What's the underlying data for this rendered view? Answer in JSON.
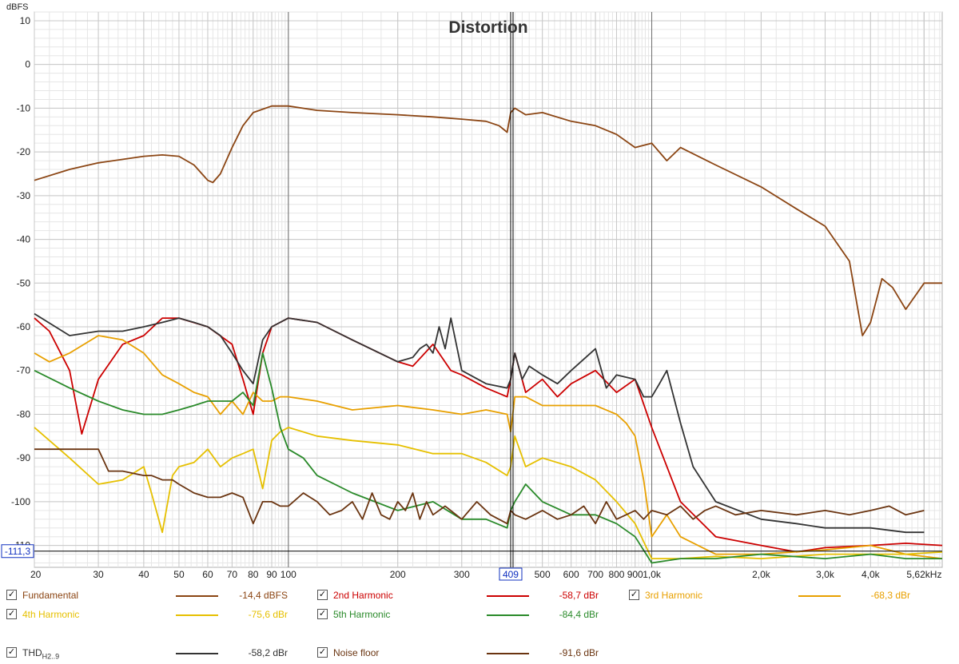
{
  "chart_data": {
    "type": "line",
    "title": "Distortion",
    "ylabel": "dBFS",
    "xscale": "log",
    "xlim": [
      20,
      6300
    ],
    "ylim": [
      -115,
      12
    ],
    "x_ticks": [
      "20",
      "30",
      "40",
      "50",
      "60",
      "70",
      "80",
      "90",
      "100",
      "200",
      "300",
      "409",
      "500",
      "600",
      "700",
      "800",
      "900",
      "1,0k",
      "2,0k",
      "3,0k",
      "4,0k",
      "5,62kHz"
    ],
    "x_tick_values": [
      20,
      30,
      40,
      50,
      60,
      70,
      80,
      90,
      100,
      200,
      300,
      409,
      500,
      600,
      700,
      800,
      900,
      1000,
      2000,
      3000,
      4000,
      5620
    ],
    "y_ticks": [
      "10",
      "0",
      "-10",
      "-20",
      "-30",
      "-40",
      "-50",
      "-60",
      "-70",
      "-80",
      "-90",
      "-100",
      "-110"
    ],
    "y_tick_values": [
      10,
      0,
      -10,
      -20,
      -30,
      -40,
      -50,
      -60,
      -70,
      -80,
      -90,
      -100,
      -110
    ],
    "cursor": {
      "x": 409,
      "x_label": "409",
      "y": -111.3,
      "y_label": "-111,3"
    },
    "grid": true,
    "series": [
      {
        "name": "Fundamental",
        "color": "#8b4513",
        "x": [
          20,
          25,
          30,
          40,
          45,
          50,
          55,
          60,
          62,
          65,
          70,
          75,
          80,
          90,
          100,
          120,
          150,
          200,
          250,
          300,
          350,
          380,
          400,
          409,
          420,
          450,
          500,
          600,
          700,
          800,
          900,
          1000,
          1100,
          1200,
          1500,
          2000,
          2500,
          3000,
          3500,
          3800,
          4000,
          4300,
          4600,
          5000,
          5620,
          6300
        ],
        "y": [
          -26.5,
          -24,
          -22.5,
          -21,
          -20.7,
          -21,
          -23,
          -26.5,
          -27,
          -25,
          -19,
          -14,
          -11,
          -9.5,
          -9.5,
          -10.5,
          -11,
          -11.5,
          -12,
          -12.5,
          -13,
          -14,
          -15.5,
          -11,
          -10,
          -11.5,
          -11,
          -13,
          -14,
          -16,
          -19,
          -18,
          -22,
          -19,
          -23,
          -28,
          -33,
          -37,
          -45,
          -62,
          -59,
          -49,
          -51,
          -56,
          -50,
          -50
        ]
      },
      {
        "name": "2nd Harmonic",
        "color": "#cc0000",
        "x": [
          20,
          22,
          25,
          27,
          30,
          35,
          40,
          45,
          50,
          60,
          70,
          75,
          80,
          85,
          90,
          100,
          120,
          150,
          200,
          220,
          250,
          280,
          300,
          350,
          400,
          409,
          420,
          450,
          500,
          550,
          600,
          700,
          800,
          900,
          1000,
          1200,
          1500,
          2000,
          2500,
          3000,
          4000,
          5000,
          6300
        ],
        "y": [
          -58,
          -61,
          -70,
          -84.5,
          -72,
          -64,
          -62,
          -58,
          -58,
          -60,
          -64,
          -72,
          -80,
          -66,
          -60,
          -58,
          -59,
          -63,
          -68,
          -69,
          -64,
          -70,
          -71,
          -74,
          -76,
          -72,
          -66,
          -75,
          -72,
          -76,
          -73,
          -70,
          -75,
          -72,
          -83,
          -100,
          -108,
          -110,
          -111.5,
          -110.5,
          -110,
          -109.5,
          -110
        ]
      },
      {
        "name": "3rd Harmonic",
        "color": "#e8a000",
        "x": [
          20,
          22,
          25,
          30,
          35,
          40,
          45,
          50,
          55,
          60,
          65,
          70,
          75,
          80,
          85,
          90,
          95,
          100,
          120,
          150,
          200,
          250,
          300,
          350,
          400,
          409,
          420,
          450,
          500,
          600,
          700,
          800,
          850,
          900,
          950,
          1000,
          1100,
          1200,
          1500,
          2000,
          3000,
          4000,
          5000,
          6300
        ],
        "y": [
          -66,
          -68,
          -66,
          -62,
          -63,
          -66,
          -71,
          -73,
          -75,
          -76,
          -80,
          -77,
          -80,
          -75,
          -77,
          -77,
          -76,
          -76,
          -77,
          -79,
          -78,
          -79,
          -80,
          -79,
          -80,
          -84,
          -76,
          -76,
          -78,
          -78,
          -78,
          -80,
          -82,
          -85,
          -95,
          -108,
          -103,
          -108,
          -112,
          -112,
          -111,
          -110,
          -112,
          -113
        ]
      },
      {
        "name": "4th Harmonic",
        "color": "#e6c000",
        "x": [
          20,
          25,
          30,
          35,
          40,
          42,
          45,
          48,
          50,
          55,
          60,
          65,
          70,
          75,
          80,
          85,
          90,
          95,
          100,
          120,
          150,
          200,
          250,
          300,
          350,
          400,
          409,
          420,
          450,
          500,
          600,
          700,
          800,
          900,
          1000,
          1200,
          1500,
          2000,
          3000,
          4000,
          5000,
          6300
        ],
        "y": [
          -83,
          -90,
          -96,
          -95,
          -92,
          -98,
          -107,
          -94,
          -92,
          -91,
          -88,
          -92,
          -90,
          -89,
          -88,
          -97,
          -86,
          -84,
          -83,
          -85,
          -86,
          -87,
          -89,
          -89,
          -91,
          -94,
          -92,
          -85,
          -92,
          -90,
          -92,
          -95,
          -100,
          -105,
          -113,
          -113,
          -112.5,
          -113,
          -112,
          -112,
          -112,
          -111.5
        ]
      },
      {
        "name": "5th Harmonic",
        "color": "#2a8a2a",
        "x": [
          20,
          25,
          30,
          35,
          40,
          45,
          50,
          55,
          60,
          65,
          70,
          75,
          80,
          85,
          90,
          95,
          100,
          110,
          120,
          150,
          200,
          250,
          300,
          350,
          400,
          409,
          420,
          450,
          500,
          600,
          700,
          800,
          900,
          1000,
          1200,
          1500,
          2000,
          3000,
          4000,
          5000,
          6300
        ],
        "y": [
          -70,
          -74,
          -77,
          -79,
          -80,
          -80,
          -79,
          -78,
          -77,
          -77,
          -77,
          -75,
          -78,
          -66,
          -74,
          -83,
          -88,
          -90,
          -94,
          -98,
          -102,
          -100,
          -104,
          -104,
          -106,
          -102,
          -100,
          -96,
          -100,
          -103,
          -103,
          -105,
          -108,
          -114,
          -113,
          -113,
          -112,
          -113,
          -112,
          -113,
          -113
        ]
      },
      {
        "name": "THD",
        "color": "#333333",
        "x": [
          20,
          25,
          30,
          35,
          40,
          45,
          50,
          55,
          60,
          65,
          70,
          75,
          80,
          85,
          90,
          100,
          120,
          150,
          200,
          220,
          230,
          240,
          250,
          260,
          270,
          280,
          300,
          350,
          400,
          409,
          420,
          440,
          460,
          500,
          550,
          600,
          700,
          750,
          800,
          900,
          950,
          1000,
          1050,
          1100,
          1200,
          1300,
          1500,
          2000,
          2500,
          3000,
          4000,
          5000,
          5620
        ],
        "y": [
          -57,
          -62,
          -61,
          -61,
          -60,
          -59,
          -58,
          -59,
          -60,
          -62,
          -66,
          -70,
          -73,
          -63,
          -60,
          -58,
          -59,
          -63,
          -68,
          -67,
          -65,
          -64,
          -66,
          -60,
          -65,
          -58,
          -70,
          -73,
          -74,
          -72,
          -66,
          -72,
          -69,
          -71,
          -73,
          -70,
          -65,
          -74,
          -71,
          -72,
          -76,
          -76,
          -73,
          -70,
          -82,
          -92,
          -100,
          -104,
          -105,
          -106,
          -106,
          -107,
          -107
        ]
      },
      {
        "name": "Noise floor",
        "color": "#6a3410",
        "x": [
          20,
          25,
          30,
          32,
          35,
          40,
          42,
          45,
          48,
          50,
          55,
          60,
          65,
          70,
          75,
          80,
          85,
          90,
          95,
          100,
          110,
          120,
          130,
          140,
          150,
          160,
          170,
          180,
          190,
          200,
          210,
          220,
          230,
          240,
          250,
          270,
          300,
          330,
          360,
          400,
          409,
          420,
          450,
          500,
          550,
          600,
          650,
          700,
          750,
          800,
          850,
          900,
          950,
          1000,
          1100,
          1200,
          1300,
          1400,
          1500,
          1700,
          2000,
          2500,
          3000,
          3500,
          4000,
          4500,
          5000,
          5620
        ],
        "y": [
          -88,
          -88,
          -88,
          -93,
          -93,
          -94,
          -94,
          -95,
          -95,
          -96,
          -98,
          -99,
          -99,
          -98,
          -99,
          -105,
          -100,
          -100,
          -101,
          -101,
          -98,
          -100,
          -103,
          -102,
          -100,
          -104,
          -98,
          -103,
          -104,
          -100,
          -102,
          -98,
          -104,
          -100,
          -103,
          -101,
          -104,
          -100,
          -103,
          -105,
          -102,
          -103,
          -104,
          -102,
          -104,
          -103,
          -101,
          -105,
          -100,
          -104,
          -103,
          -102,
          -104,
          -102,
          -103,
          -101,
          -104,
          -102,
          -101,
          -103,
          -102,
          -103,
          -102,
          -103,
          -102,
          -101,
          -103,
          -102
        ]
      }
    ]
  },
  "legend": [
    {
      "name": "Fundamental",
      "value": "-14,4 dBFS",
      "color": "#8b4513",
      "checked": "✓"
    },
    {
      "name": "2nd Harmonic",
      "value": "-58,7 dBr",
      "color": "#cc0000",
      "checked": "✓"
    },
    {
      "name": "3rd Harmonic",
      "value": "-68,3 dBr",
      "color": "#e8a000",
      "checked": "✓"
    },
    {
      "name": "4th Harmonic",
      "value": "-75,6 dBr",
      "color": "#e6c000",
      "checked": "✓"
    },
    {
      "name": "5th Harmonic",
      "value": "-84,4 dBr",
      "color": "#2a8a2a",
      "checked": "✓"
    },
    {
      "name": "THD",
      "sub": "H2..9",
      "value": "-58,2 dBr",
      "color": "#333333",
      "checked": "✓"
    },
    {
      "name": "Noise floor",
      "value": "-91,6 dBr",
      "color": "#6a3410",
      "checked": "✓"
    }
  ]
}
